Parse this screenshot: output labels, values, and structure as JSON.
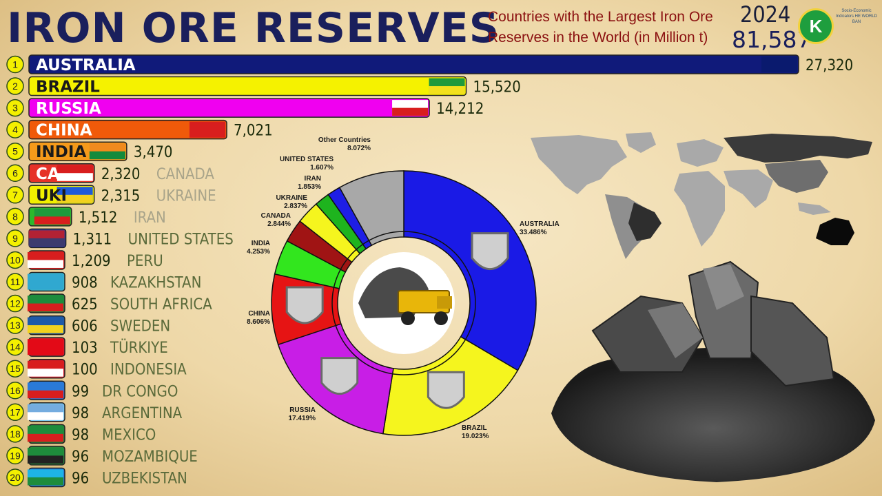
{
  "header": {
    "title": "IRON ORE RESERVES",
    "subtitle": "Countries with the Largest Iron Ore Reserves in the World (in Million t)",
    "year": "2024",
    "total": "81,587"
  },
  "logo": {
    "mark": "K",
    "text": "Socio-Economic Indicators HE WORLD BAN"
  },
  "chart_data": [
    {
      "type": "bar",
      "orientation": "horizontal",
      "categories": [
        "AUSTRALIA",
        "BRAZIL",
        "RUSSIA",
        "CHINA",
        "INDIA",
        "CANADA",
        "UKRAINE",
        "IRAN",
        "UNITED STATES",
        "PERU",
        "KAZAKHSTAN",
        "SOUTH AFRICA",
        "SWEDEN",
        "TÜRKIYE",
        "INDONESIA",
        "DR CONGO",
        "ARGENTINA",
        "MEXICO",
        "MOZAMBIQUE",
        "UZBEKISTAN"
      ],
      "inside_labels": [
        "AUSTRALIA",
        "BRAZIL",
        "RUSSIA",
        "CHINA",
        "INDIA",
        "CA",
        "UKI",
        "",
        "",
        "",
        "",
        "",
        "",
        "",
        "",
        "",
        "",
        "",
        "",
        ""
      ],
      "values": [
        27320,
        15520,
        14212,
        7021,
        3470,
        2320,
        2315,
        1512,
        1311,
        1209,
        908,
        625,
        606,
        103,
        100,
        99,
        98,
        98,
        96,
        96
      ],
      "value_labels": [
        "27,320",
        "15,520",
        "14,212",
        "7,021",
        "3,470",
        "2,320",
        "2,315",
        "1,512",
        "1,311",
        "1,209",
        "908",
        "625",
        "606",
        "103",
        "100",
        "99",
        "98",
        "98",
        "96",
        "96"
      ],
      "ranks": [
        "1",
        "2",
        "3",
        "4",
        "5",
        "6",
        "7",
        "8",
        "9",
        "10",
        "11",
        "12",
        "13",
        "14",
        "15",
        "16",
        "17",
        "18",
        "19",
        "20"
      ],
      "colors": [
        "#101a7a",
        "#f5f200",
        "#f000f0",
        "#f05a0a",
        "#f59a1a",
        "#e63228",
        "#f2f000",
        "#2cb82c",
        "#2a3f9a",
        "#d81e1e",
        "#3ab4c8",
        "#1e8c3c",
        "#1e5aa8",
        "#d81e2a",
        "#d81e2a",
        "#2a7ad8",
        "#76c8f0",
        "#1e8c3c",
        "#2a8c3c",
        "#2a7ad8"
      ],
      "flags": [
        "australia-flag",
        "brazil-flag",
        "russia-flag",
        "china-flag",
        "india-flag",
        "canada-flag",
        "ukraine-flag",
        "iran-flag",
        "usa-flag",
        "peru-flag",
        "kazakhstan-flag",
        "south-africa-flag",
        "sweden-flag",
        "turkiye-flag",
        "indonesia-flag",
        "dr-congo-flag",
        "argentina-flag",
        "mexico-flag",
        "mozambique-flag",
        "uzbekistan-flag"
      ]
    },
    {
      "type": "pie",
      "style": "donut",
      "segments": [
        {
          "name": "AUSTRALIA",
          "percent": 33.486,
          "label": "33.486%",
          "color": "#1a1ae6"
        },
        {
          "name": "BRAZIL",
          "percent": 19.023,
          "label": "19.023%",
          "color": "#f5f51e"
        },
        {
          "name": "RUSSIA",
          "percent": 17.419,
          "label": "17.419%",
          "color": "#c81ee6"
        },
        {
          "name": "CHINA",
          "percent": 8.606,
          "label": "8.606%",
          "color": "#e61414"
        },
        {
          "name": "INDIA",
          "percent": 4.253,
          "label": "4.253%",
          "color": "#32e61e"
        },
        {
          "name": "CANADA",
          "percent": 2.844,
          "label": "2.844%",
          "color": "#a01414"
        },
        {
          "name": "UKRAINE",
          "percent": 2.837,
          "label": "2.837%",
          "color": "#f5f51e"
        },
        {
          "name": "IRAN",
          "percent": 1.853,
          "label": "1.853%",
          "color": "#1eb41e"
        },
        {
          "name": "UNITED STATES",
          "percent": 1.607,
          "label": "1.607%",
          "color": "#1e1ee6"
        },
        {
          "name": "Other Countries",
          "percent": 8.072,
          "label": "8.072%",
          "color": "#a8a8a8"
        }
      ]
    }
  ],
  "decor": {
    "map": "world-map",
    "ore": "iron-ore-pile",
    "truck": "mining-truck-icon"
  }
}
